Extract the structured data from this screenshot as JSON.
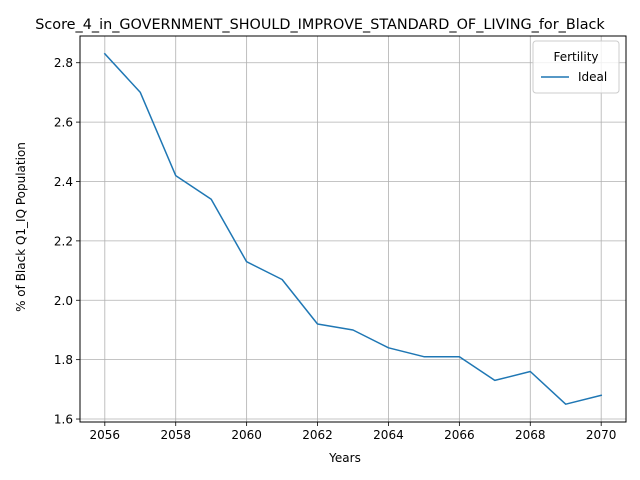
{
  "chart_data": {
    "type": "line",
    "title": "Score_4_in_GOVERNMENT_SHOULD_IMPROVE_STANDARD_OF_LIVING_for_Black",
    "xlabel": "Years",
    "ylabel": "% of Black Q1_IQ Population",
    "xlim": [
      2055.3,
      2070.7
    ],
    "ylim": [
      1.59,
      2.89
    ],
    "xticks": [
      2056,
      2058,
      2060,
      2062,
      2064,
      2066,
      2068,
      2070
    ],
    "yticks": [
      1.6,
      1.8,
      2.0,
      2.2,
      2.4,
      2.6,
      2.8
    ],
    "grid": true,
    "legend": {
      "title": "Fertility",
      "placement": "top-right"
    },
    "x": [
      2056,
      2057,
      2058,
      2059,
      2060,
      2061,
      2062,
      2063,
      2064,
      2065,
      2066,
      2067,
      2068,
      2069,
      2070
    ],
    "series": [
      {
        "name": "Ideal",
        "color": "#1f77b4",
        "values": [
          2.83,
          2.7,
          2.42,
          2.34,
          2.13,
          2.07,
          1.92,
          1.9,
          1.84,
          1.81,
          1.81,
          1.73,
          1.76,
          1.65,
          1.68
        ]
      }
    ]
  }
}
